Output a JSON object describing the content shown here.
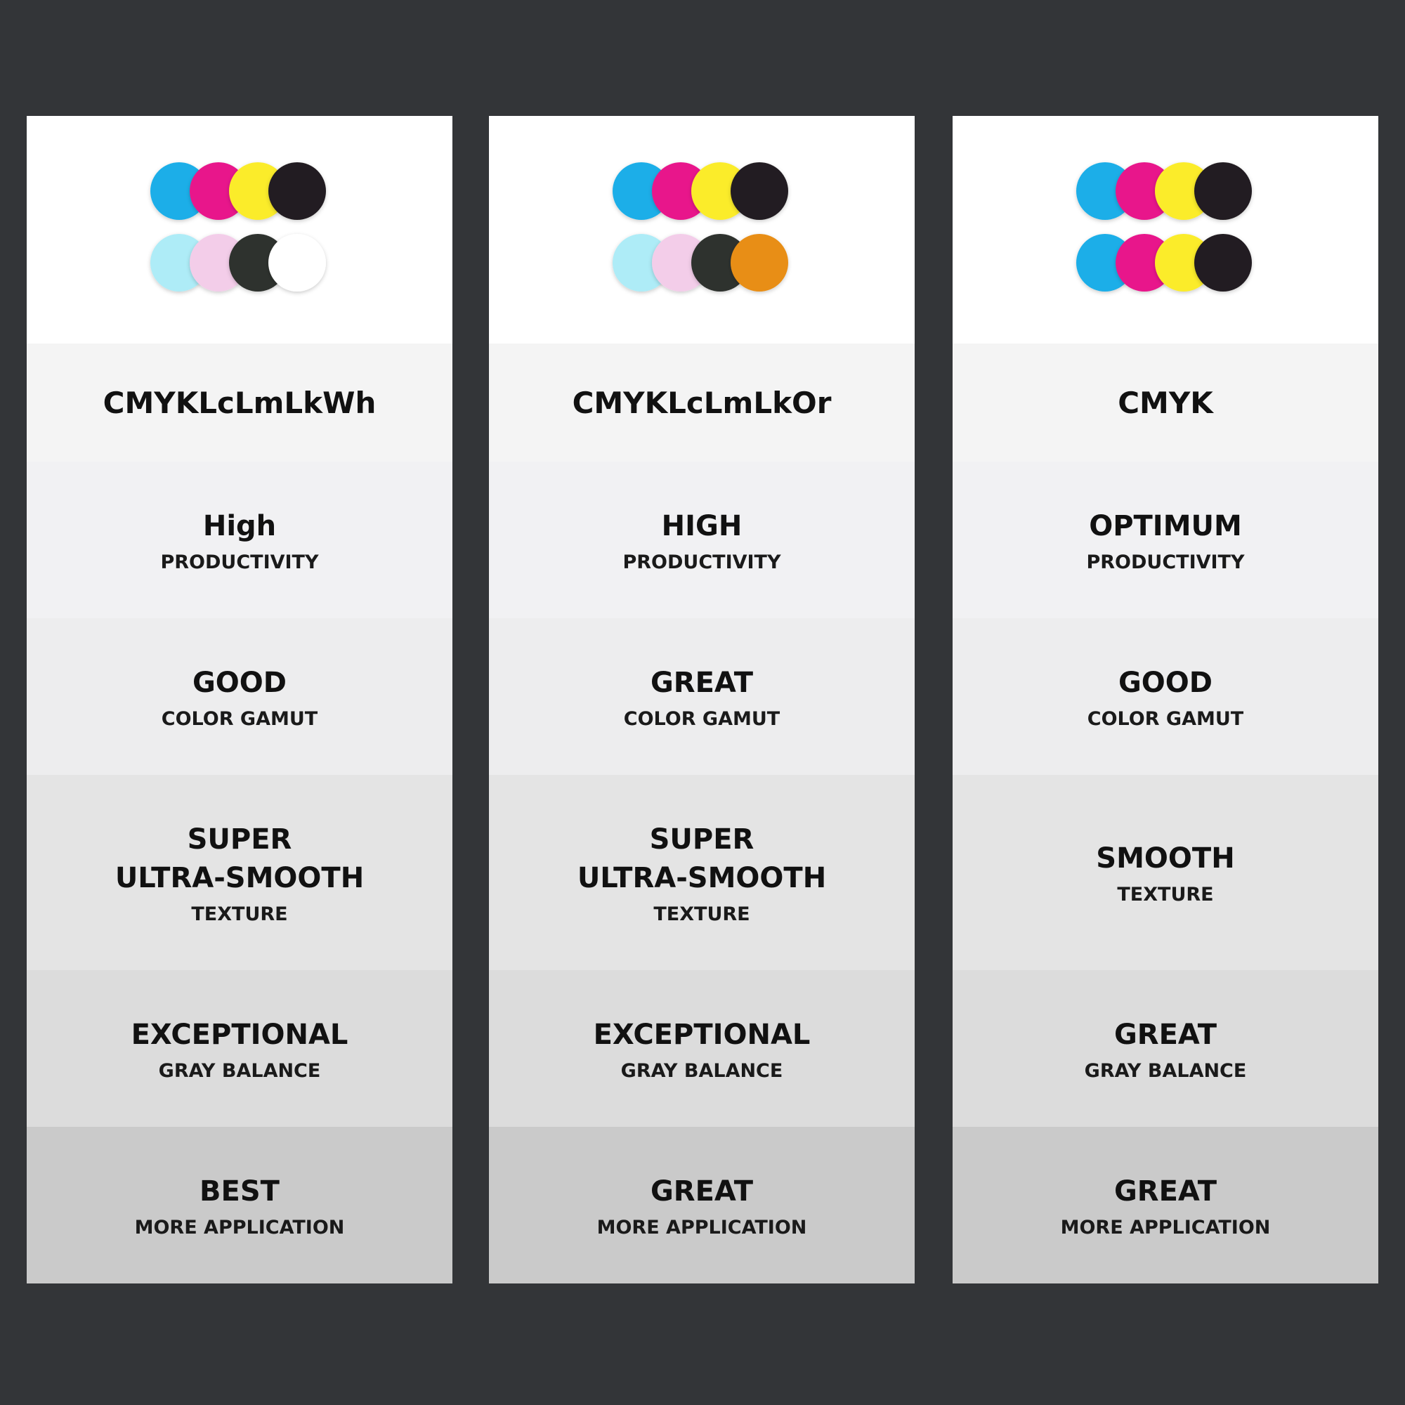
{
  "columns": [
    {
      "inks": [
        "#1eaee8",
        "#e8198b",
        "#fbec2a",
        "#231f20",
        "#aeecf7",
        "#f3cde9",
        "#2e322e",
        "#ffffff"
      ],
      "name": "CMYKLcLmLkWh",
      "rows": [
        {
          "lines": [
            "High"
          ],
          "sub": "PRODUCTIVITY"
        },
        {
          "lines": [
            "GOOD"
          ],
          "sub": "COLOR GAMUT"
        },
        {
          "lines": [
            "SUPER",
            "ULTRA-SMOOTH"
          ],
          "sub": "TEXTURE"
        },
        {
          "lines": [
            "EXCEPTIONAL"
          ],
          "sub": "GRAY BALANCE"
        },
        {
          "lines": [
            "BEST"
          ],
          "sub": "MORE APPLICATION"
        }
      ]
    },
    {
      "inks": [
        "#1eaee8",
        "#e8198b",
        "#fbec2a",
        "#231f20",
        "#aeecf7",
        "#f3cde9",
        "#2e322e",
        "#e88e16"
      ],
      "name": "CMYKLcLmLkOr",
      "rows": [
        {
          "lines": [
            "HIGH"
          ],
          "sub": "PRODUCTIVITY"
        },
        {
          "lines": [
            "GREAT"
          ],
          "sub": "COLOR GAMUT"
        },
        {
          "lines": [
            "SUPER",
            "ULTRA-SMOOTH"
          ],
          "sub": "TEXTURE"
        },
        {
          "lines": [
            "EXCEPTIONAL"
          ],
          "sub": "GRAY BALANCE"
        },
        {
          "lines": [
            "GREAT"
          ],
          "sub": "MORE APPLICATION"
        }
      ]
    },
    {
      "inks": [
        "#1eaee8",
        "#e8198b",
        "#fbec2a",
        "#231f20",
        "#1eaee8",
        "#e8198b",
        "#fbec2a",
        "#231f20"
      ],
      "name": "CMYK",
      "rows": [
        {
          "lines": [
            "OPTIMUM"
          ],
          "sub": "PRODUCTIVITY"
        },
        {
          "lines": [
            "GOOD"
          ],
          "sub": "COLOR GAMUT"
        },
        {
          "lines": [
            "SMOOTH"
          ],
          "sub": "TEXTURE"
        },
        {
          "lines": [
            "GREAT"
          ],
          "sub": "GRAY BALANCE"
        },
        {
          "lines": [
            "GREAT"
          ],
          "sub": "MORE APPLICATION"
        }
      ]
    }
  ]
}
